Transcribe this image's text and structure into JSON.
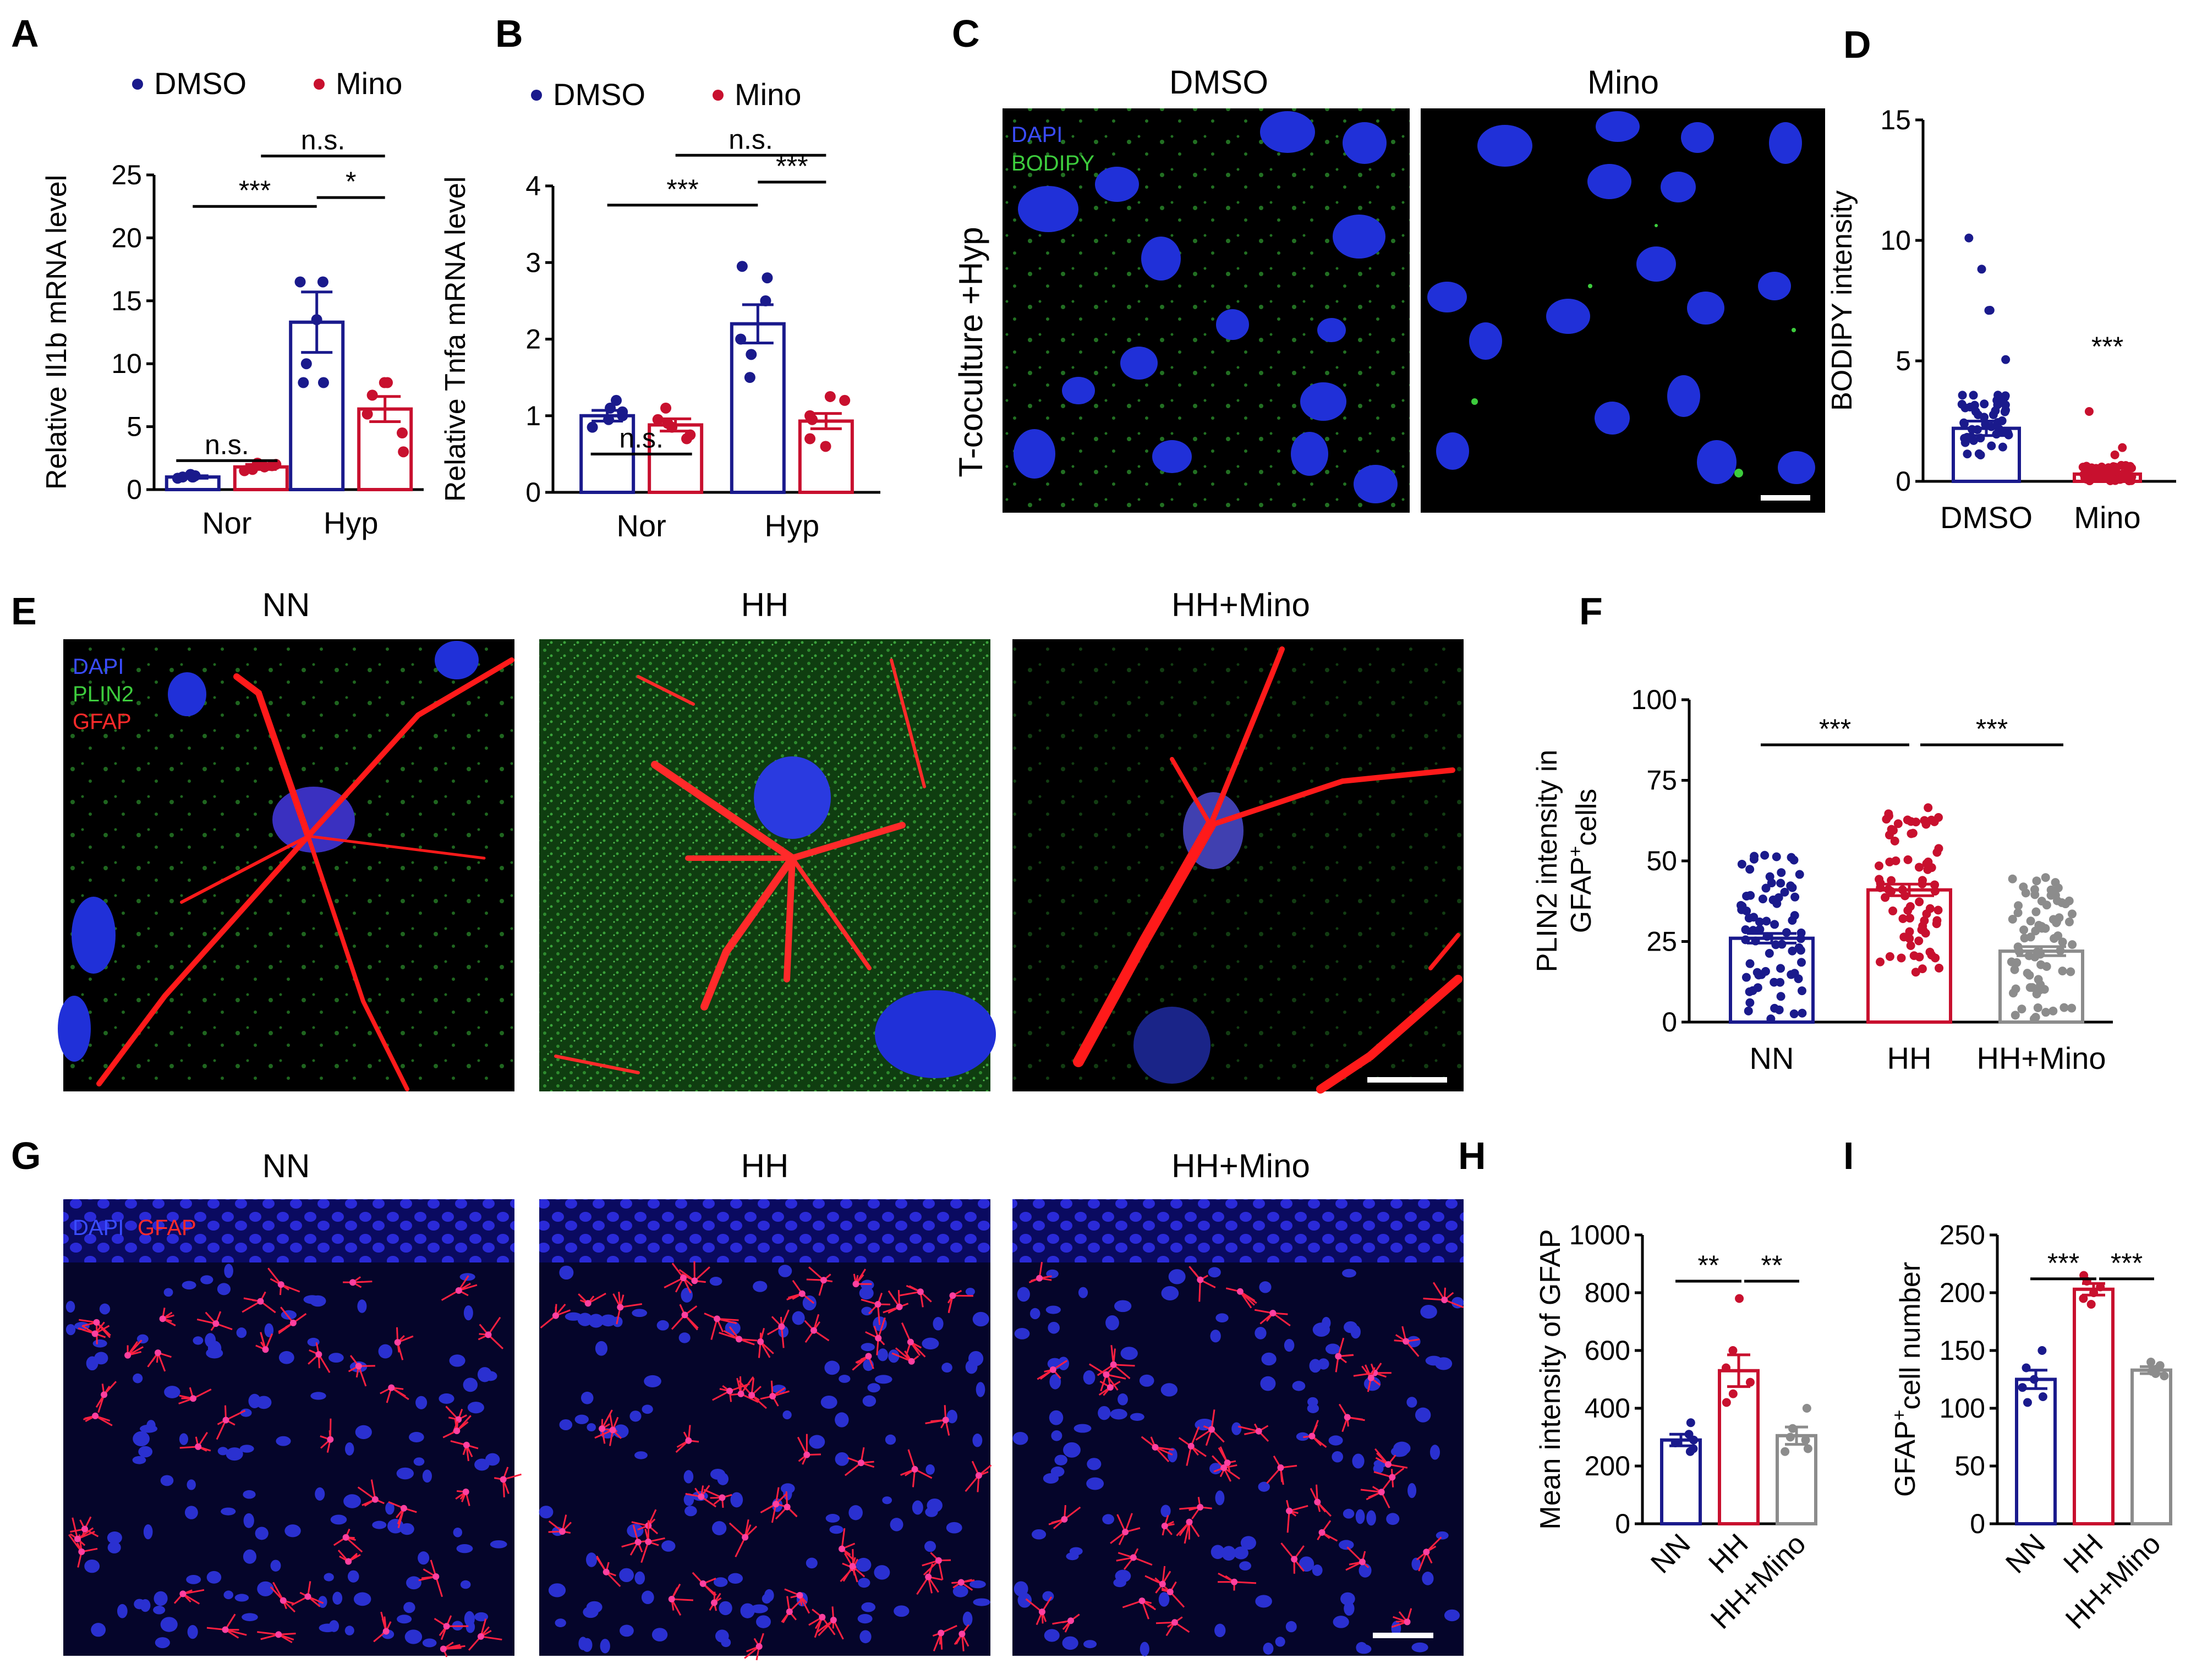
{
  "panels": {
    "a": "A",
    "b": "B",
    "c": "C",
    "d": "D",
    "e": "E",
    "f": "F",
    "g": "G",
    "h": "H",
    "i": "I"
  },
  "colors": {
    "dmso": "#1a1a8c",
    "mino": "#c8102e",
    "hhmino": "#8c8c8c",
    "dapi": "#1a3cff",
    "green": "#3dcc3d",
    "red": "#ff1a1a"
  },
  "panelC": {
    "titles": [
      "DMSO",
      "Mino"
    ],
    "side_label": "T-coculture +Hyp",
    "stains": [
      "DAPI",
      "BODIPY"
    ]
  },
  "panelE": {
    "titles": [
      "NN",
      "HH",
      "HH+Mino"
    ],
    "stains": [
      "DAPI",
      "PLIN2",
      "GFAP"
    ]
  },
  "panelG": {
    "titles": [
      "NN",
      "HH",
      "HH+Mino"
    ],
    "stains": [
      "DAPI",
      "GFAP"
    ]
  },
  "chart_data": [
    {
      "id": "A",
      "type": "bar",
      "ylabel": "Relative Il1b mRNA level",
      "categories": [
        "Nor",
        "Hyp"
      ],
      "ylim": [
        0,
        25
      ],
      "yticks": [
        0,
        5,
        10,
        15,
        20,
        25
      ],
      "legend": [
        "DMSO",
        "Mino"
      ],
      "series": [
        {
          "name": "DMSO",
          "values": [
            1.0,
            13.3
          ],
          "sem": [
            0.1,
            2.4
          ],
          "points": [
            [
              1.0,
              1.1,
              0.9,
              1.0,
              1.2,
              1.0
            ],
            [
              16.5,
              16.5,
              13.5,
              10.0,
              8.5,
              8.5
            ]
          ]
        },
        {
          "name": "Mino",
          "values": [
            1.8,
            6.4
          ],
          "sem": [
            0.2,
            1.0
          ],
          "points": [
            [
              1.5,
              2.0,
              1.8,
              2.1,
              1.6,
              1.9
            ],
            [
              8.5,
              8.5,
              7.5,
              6.0,
              4.5,
              3.0
            ]
          ]
        }
      ],
      "significance": [
        {
          "label": "n.s.",
          "pair": [
            "Nor-DMSO",
            "Nor-Mino"
          ]
        },
        {
          "label": "***",
          "pair": [
            "Nor-DMSO",
            "Hyp-DMSO"
          ]
        },
        {
          "label": "*",
          "pair": [
            "Hyp-DMSO",
            "Hyp-Mino"
          ]
        },
        {
          "label": "n.s.",
          "pair": [
            "Nor-Mino",
            "Hyp-Mino"
          ]
        }
      ]
    },
    {
      "id": "B",
      "type": "bar",
      "ylabel": "Relative Tnfa mRNA level",
      "categories": [
        "Nor",
        "Hyp"
      ],
      "ylim": [
        0,
        4
      ],
      "yticks": [
        0,
        1,
        2,
        3,
        4
      ],
      "legend": [
        "DMSO",
        "Mino"
      ],
      "series": [
        {
          "name": "DMSO",
          "values": [
            1.0,
            2.2
          ],
          "sem": [
            0.07,
            0.25
          ],
          "points": [
            [
              1.2,
              1.1,
              1.0,
              0.95,
              0.85,
              1.05
            ],
            [
              2.95,
              2.8,
              2.5,
              2.0,
              1.8,
              1.5
            ]
          ]
        },
        {
          "name": "Mino",
          "values": [
            0.88,
            0.93
          ],
          "sem": [
            0.08,
            0.1
          ],
          "points": [
            [
              1.1,
              0.95,
              0.85,
              0.9,
              0.7,
              0.75
            ],
            [
              1.25,
              1.2,
              1.0,
              0.95,
              0.7,
              0.6
            ]
          ]
        }
      ],
      "significance": [
        {
          "label": "n.s.",
          "pair": [
            "Nor-DMSO",
            "Nor-Mino"
          ]
        },
        {
          "label": "***",
          "pair": [
            "Nor-DMSO",
            "Hyp-DMSO"
          ]
        },
        {
          "label": "***",
          "pair": [
            "Hyp-DMSO",
            "Hyp-Mino"
          ]
        },
        {
          "label": "n.s.",
          "pair": [
            "Nor-Mino",
            "Hyp-Mino"
          ]
        }
      ]
    },
    {
      "id": "D",
      "type": "bar",
      "ylabel": "BODIPY intensity",
      "categories": [
        "DMSO",
        "Mino"
      ],
      "ylim": [
        0,
        15
      ],
      "yticks": [
        0,
        5,
        10,
        15
      ],
      "series": [
        {
          "name": "DMSO",
          "values": [
            2.2,
            0.3
          ],
          "sem": [
            0.3,
            0.1
          ]
        }
      ],
      "annotations": [
        {
          "label": "***",
          "category": "Mino"
        }
      ]
    },
    {
      "id": "F",
      "type": "bar",
      "ylabel": "PLIN2 intensity in GFAP+cells",
      "categories": [
        "NN",
        "HH",
        "HH+Mino"
      ],
      "ylim": [
        0,
        100
      ],
      "yticks": [
        0,
        25,
        50,
        75,
        100
      ],
      "values": [
        26,
        41,
        22
      ],
      "sem": [
        1.5,
        1.8,
        1.4
      ],
      "significance": [
        {
          "label": "***",
          "pair": [
            "NN",
            "HH"
          ]
        },
        {
          "label": "***",
          "pair": [
            "HH",
            "HH+Mino"
          ]
        }
      ]
    },
    {
      "id": "H",
      "type": "bar",
      "ylabel": "Mean intensity of GFAP",
      "categories": [
        "NN",
        "HH",
        "HH+Mino"
      ],
      "ylim": [
        0,
        1000
      ],
      "yticks": [
        0,
        200,
        400,
        600,
        800,
        1000
      ],
      "values": [
        290,
        530,
        305
      ],
      "sem": [
        20,
        55,
        30
      ],
      "points": [
        [
          350,
          310,
          290,
          280,
          260,
          250
        ],
        [
          780,
          600,
          540,
          490,
          450,
          420
        ],
        [
          400,
          330,
          300,
          290,
          260,
          250
        ]
      ],
      "significance": [
        {
          "label": "**",
          "pair": [
            "NN",
            "HH"
          ]
        },
        {
          "label": "**",
          "pair": [
            "HH",
            "HH+Mino"
          ]
        }
      ]
    },
    {
      "id": "I",
      "type": "bar",
      "ylabel": "GFAP+cell number",
      "categories": [
        "NN",
        "HH",
        "HH+Mino"
      ],
      "ylim": [
        0,
        250
      ],
      "yticks": [
        0,
        50,
        100,
        150,
        200,
        250
      ],
      "values": [
        125,
        203,
        133
      ],
      "sem": [
        8,
        5,
        3
      ],
      "points": [
        [
          150,
          135,
          125,
          118,
          110,
          105
        ],
        [
          215,
          210,
          205,
          200,
          195,
          190
        ],
        [
          140,
          137,
          134,
          132,
          130,
          128
        ]
      ],
      "significance": [
        {
          "label": "***",
          "pair": [
            "NN",
            "HH"
          ]
        },
        {
          "label": "***",
          "pair": [
            "HH",
            "HH+Mino"
          ]
        }
      ]
    }
  ]
}
